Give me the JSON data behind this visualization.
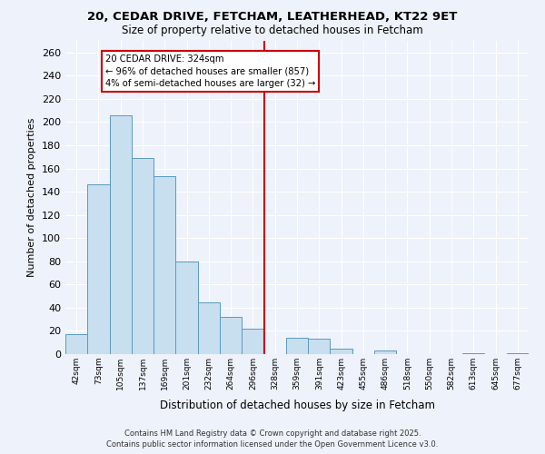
{
  "title": "20, CEDAR DRIVE, FETCHAM, LEATHERHEAD, KT22 9ET",
  "subtitle": "Size of property relative to detached houses in Fetcham",
  "xlabel": "Distribution of detached houses by size in Fetcham",
  "ylabel": "Number of detached properties",
  "bin_labels": [
    "42sqm",
    "73sqm",
    "105sqm",
    "137sqm",
    "169sqm",
    "201sqm",
    "232sqm",
    "264sqm",
    "296sqm",
    "328sqm",
    "359sqm",
    "391sqm",
    "423sqm",
    "455sqm",
    "486sqm",
    "518sqm",
    "550sqm",
    "582sqm",
    "613sqm",
    "645sqm",
    "677sqm"
  ],
  "bar_heights": [
    17,
    146,
    206,
    169,
    153,
    80,
    45,
    32,
    22,
    0,
    14,
    13,
    5,
    0,
    3,
    0,
    0,
    0,
    1,
    0,
    1
  ],
  "bar_color": "#c8dff0",
  "bar_edge_color": "#5a9abf",
  "highlight_bin_index": 9,
  "highlight_label": "20 CEDAR DRIVE: 324sqm",
  "highlight_sub1": "← 96% of detached houses are smaller (857)",
  "highlight_sub2": "4% of semi-detached houses are larger (32) →",
  "vline_color": "#cc0000",
  "ylim": [
    0,
    270
  ],
  "yticks": [
    0,
    20,
    40,
    60,
    80,
    100,
    120,
    140,
    160,
    180,
    200,
    220,
    240,
    260
  ],
  "background_color": "#eef2fa",
  "grid_color": "#ffffff",
  "footnote1": "Contains HM Land Registry data © Crown copyright and database right 2025.",
  "footnote2": "Contains public sector information licensed under the Open Government Licence v3.0."
}
